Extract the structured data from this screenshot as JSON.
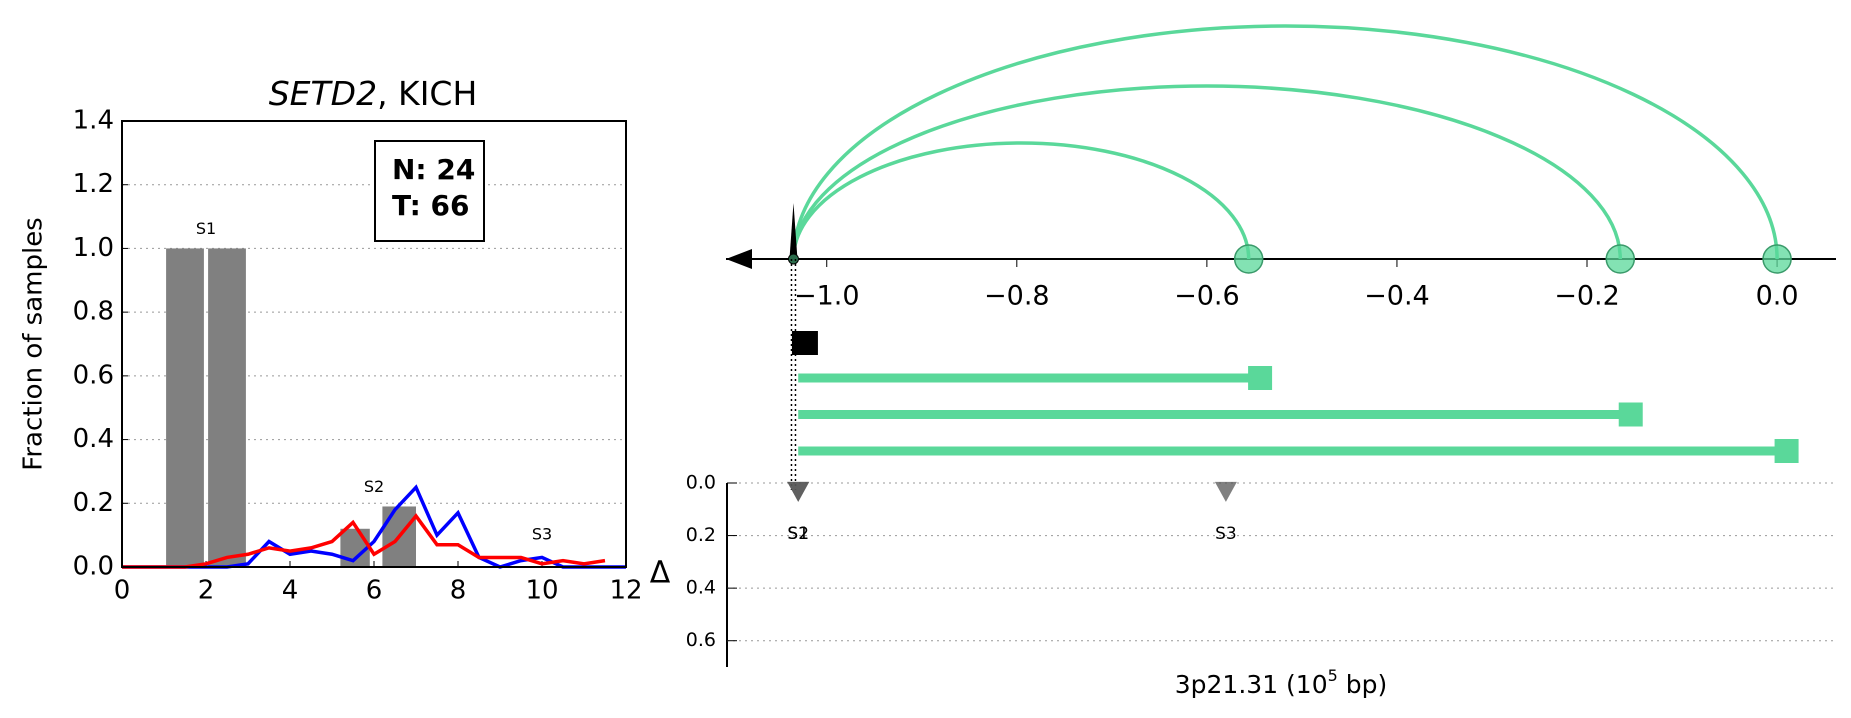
{
  "chart_data": [
    {
      "type": "line",
      "title": {
        "gene": "SETD2",
        "rest": ", KICH"
      },
      "ylabel": "Fraction of samples",
      "xlim": [
        0,
        12
      ],
      "xticks": [
        0,
        2,
        4,
        6,
        8,
        10,
        12
      ],
      "ylim": [
        0,
        1.4
      ],
      "yticks": [
        {
          "value": 0,
          "label": "0.0"
        },
        {
          "value": 0.2,
          "label": "0.2"
        },
        {
          "value": 0.4,
          "label": "0.4"
        },
        {
          "value": 0.6,
          "label": "0.6"
        },
        {
          "value": 0.8,
          "label": "0.8"
        },
        {
          "value": 1,
          "label": "1.0"
        },
        {
          "value": 1.2,
          "label": "1.2"
        },
        {
          "value": 1.4,
          "label": "1.4"
        }
      ],
      "grid": true,
      "bars": {
        "color": "#808080",
        "left": [
          1.05,
          2.05,
          5.2,
          6.2
        ],
        "right": [
          1.95,
          2.95,
          5.9,
          7.0
        ],
        "values": [
          1.0,
          1.0,
          0.12,
          0.19
        ]
      },
      "regions": [
        {
          "label": "S1",
          "x": 2,
          "y": 1.06
        },
        {
          "label": "S2",
          "x": 6,
          "y": 0.25
        },
        {
          "label": "S3",
          "x": 10,
          "y": 0.1
        }
      ],
      "x": [
        0,
        0.5,
        1,
        1.5,
        2,
        2.5,
        3,
        3.5,
        4,
        4.5,
        5,
        5.5,
        6,
        6.5,
        7,
        7.5,
        8,
        8.5,
        9,
        9.5,
        10,
        10.5,
        11,
        11.5,
        12
      ],
      "series": [
        {
          "color": "#0000ff",
          "values": [
            0,
            0,
            0,
            0,
            0,
            0,
            0.01,
            0.08,
            0.04,
            0.05,
            0.04,
            0.02,
            0.08,
            0.18,
            0.25,
            0.1,
            0.17,
            0.03,
            0,
            0.02,
            0.03,
            0,
            0,
            0,
            0
          ]
        },
        {
          "color": "#ff0000",
          "values": [
            0,
            0,
            0,
            0,
            0.01,
            0.03,
            0.04,
            0.06,
            0.05,
            0.06,
            0.08,
            0.14,
            0.04,
            0.08,
            0.16,
            0.07,
            0.07,
            0.03,
            0.03,
            0.03,
            0.01,
            0.02,
            0.01,
            0.02,
            null
          ]
        }
      ],
      "annotation_box": [
        "N: 24",
        "T: 66"
      ]
    },
    {
      "type": "arc",
      "color": "#5ad89a",
      "xlim": [
        -1.106,
        0.062
      ],
      "xticks": [
        {
          "value": -1.0,
          "label": "−1.0"
        },
        {
          "value": -0.8,
          "label": "−0.8"
        },
        {
          "value": -0.6,
          "label": "−0.6"
        },
        {
          "value": -0.4,
          "label": "−0.4"
        },
        {
          "value": -0.2,
          "label": "−0.2"
        },
        {
          "value": 0,
          "label": "0.0"
        }
      ],
      "origin": -1.035,
      "targets": [
        -0.556,
        -0.165,
        0.0
      ],
      "marker": -1.024,
      "segment_start": -1.03,
      "segment_ends": [
        -0.544,
        -0.154,
        0.01
      ],
      "xlabel": [
        "3p21.31 (10",
        "5",
        " bp)"
      ],
      "delta": {
        "ylabel": "Δ",
        "ylim": [
          0,
          0.7
        ],
        "yticks": [
          {
            "value": 0,
            "label": "0.0"
          },
          {
            "value": 0.2,
            "label": "0.2"
          },
          {
            "value": 0.4,
            "label": "0.4"
          },
          {
            "value": 0.6,
            "label": "0.6"
          }
        ],
        "x": [
          -1.03,
          -1.03,
          -0.58
        ],
        "values": [
          0.03,
          0.03,
          0.03
        ],
        "labels": [
          "S1",
          "S2",
          "S3"
        ]
      }
    }
  ]
}
